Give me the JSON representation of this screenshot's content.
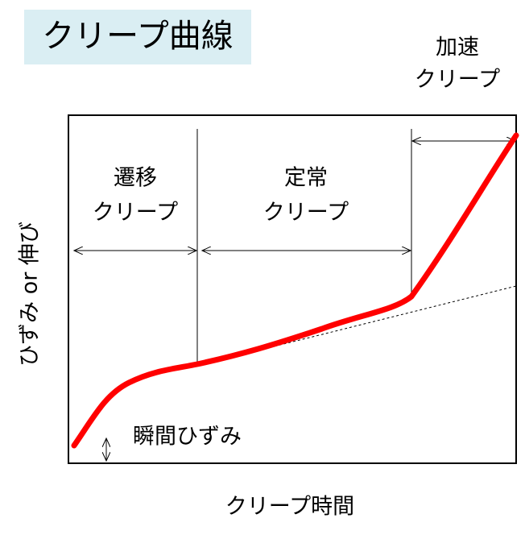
{
  "title": "クリープ曲線",
  "stages": {
    "primary": [
      "遷移",
      "クリープ"
    ],
    "secondary": [
      "定常",
      "クリープ"
    ],
    "tertiary": [
      "加速",
      "クリープ"
    ]
  },
  "instant_strain": "瞬間ひずみ",
  "y_label": "ひずみ or 伸び",
  "x_label": "クリープ時間"
}
